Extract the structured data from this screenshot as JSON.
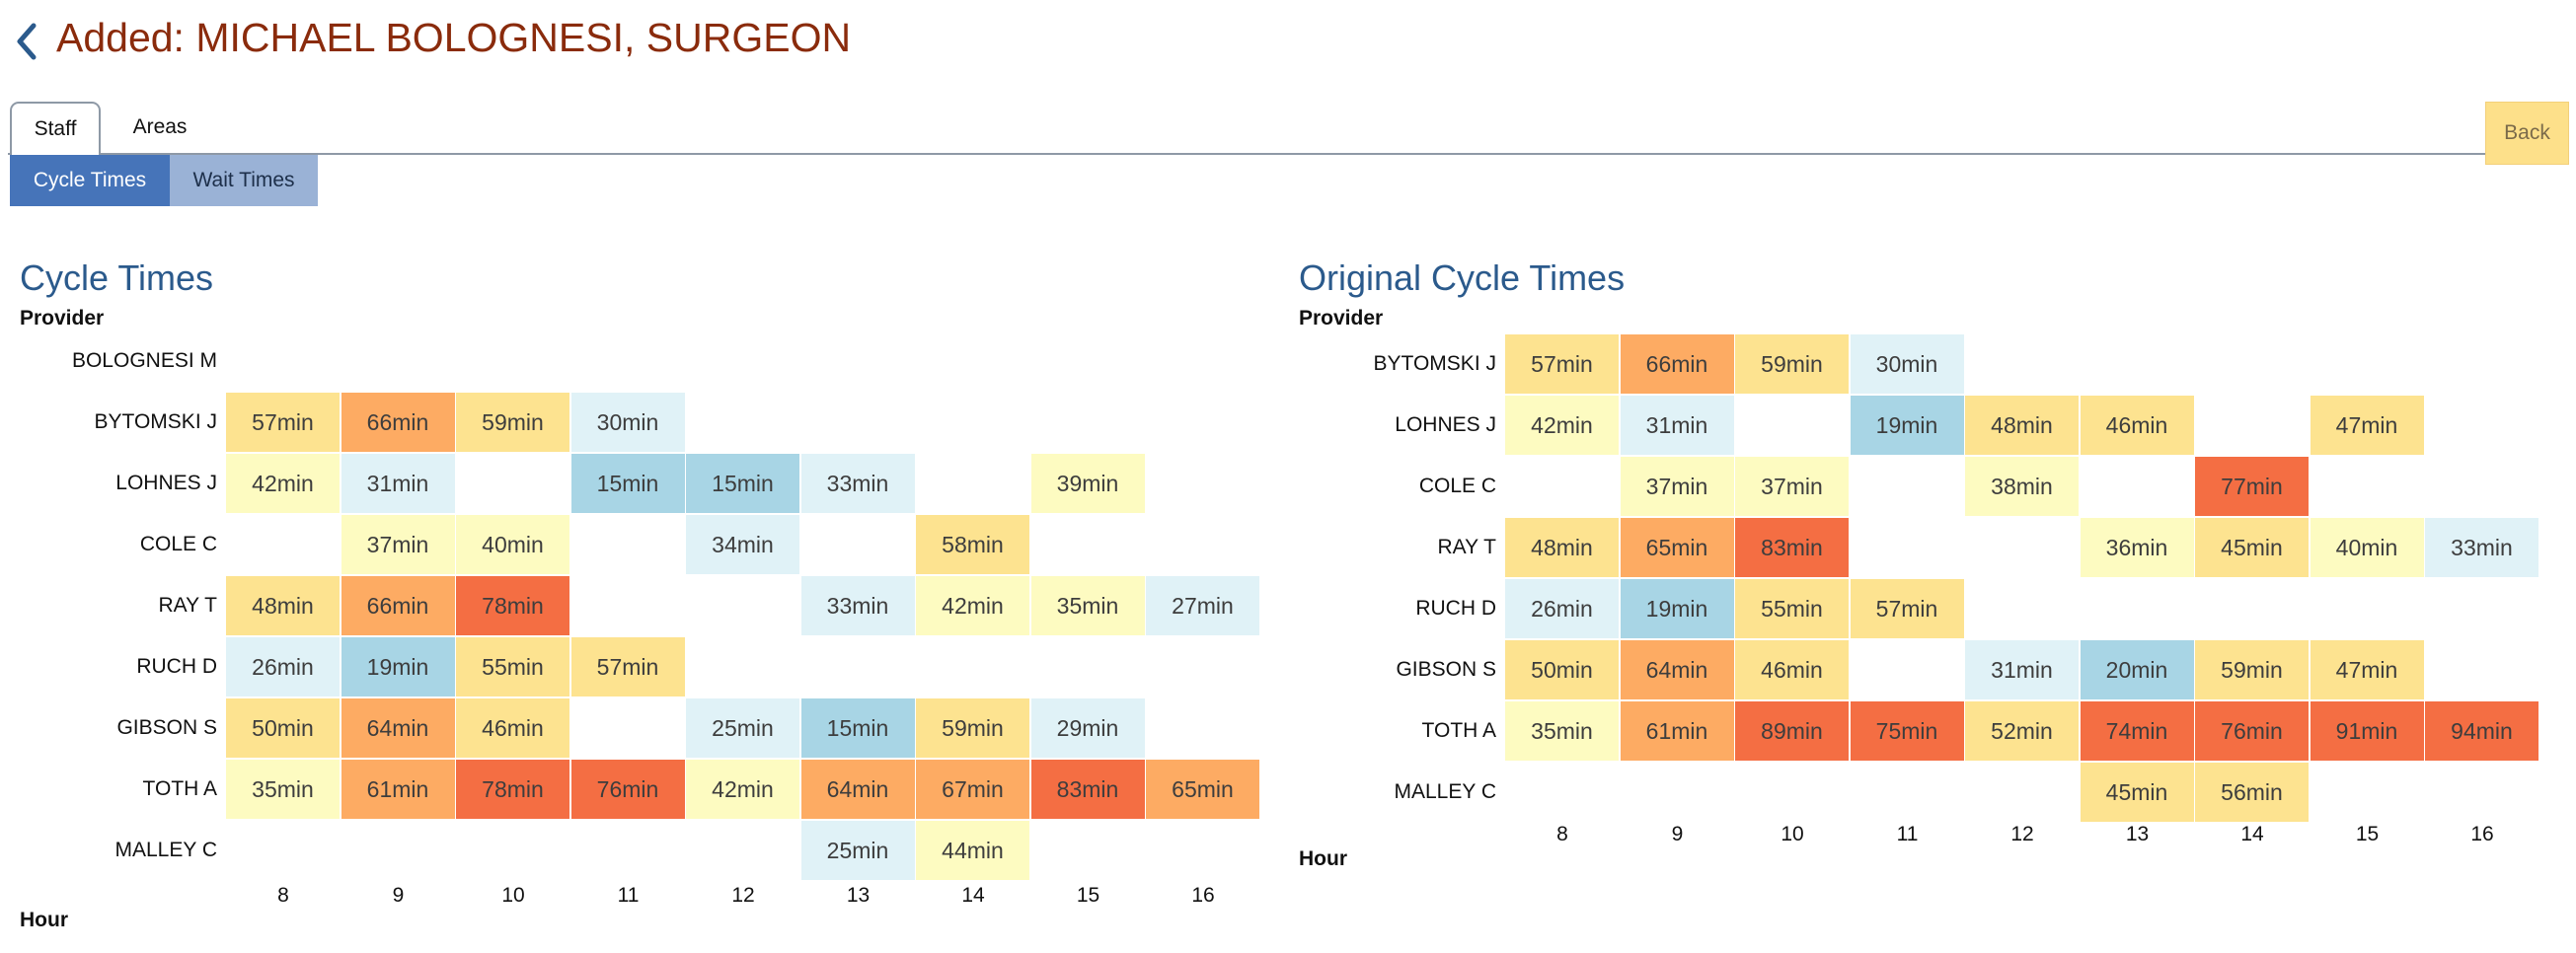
{
  "header": {
    "title": "Added: MICHAEL BOLOGNESI, SURGEON",
    "back_icon": "chevron-left-icon"
  },
  "tabs": [
    {
      "label": "Staff",
      "active": true
    },
    {
      "label": "Areas",
      "active": false
    }
  ],
  "back_button": {
    "label": "Back"
  },
  "subtabs": [
    {
      "label": "Cycle Times",
      "active": true
    },
    {
      "label": "Wait Times",
      "active": false
    }
  ],
  "colors": {
    "title": "#8a2b0c",
    "panel_title": "#2b5a8c",
    "subtab_active": "#4674b9",
    "subtab_inactive": "#9ab2d6",
    "back_button": "#fde08a"
  },
  "chart_data": [
    {
      "type": "heatmap",
      "title": "Cycle Times",
      "ylabel": "Provider",
      "xlabel": "Hour",
      "x": [
        "8",
        "9",
        "10",
        "11",
        "12",
        "13",
        "14",
        "15",
        "16"
      ],
      "y": [
        "BOLOGNESI M",
        "BYTOMSKI J",
        "LOHNES J",
        "COLE C",
        "RAY T",
        "RUCH D",
        "GIBSON S",
        "TOTH A",
        "MALLEY C"
      ],
      "values": [
        [
          null,
          null,
          null,
          null,
          null,
          null,
          null,
          null,
          null
        ],
        [
          57,
          66,
          59,
          30,
          null,
          null,
          null,
          null,
          null
        ],
        [
          42,
          31,
          null,
          15,
          15,
          33,
          null,
          39,
          null
        ],
        [
          null,
          37,
          40,
          null,
          34,
          null,
          58,
          null,
          null
        ],
        [
          48,
          66,
          78,
          null,
          null,
          33,
          42,
          35,
          27
        ],
        [
          26,
          19,
          55,
          57,
          null,
          null,
          null,
          null,
          null
        ],
        [
          50,
          64,
          46,
          null,
          25,
          15,
          59,
          29,
          null
        ],
        [
          35,
          61,
          78,
          76,
          42,
          64,
          67,
          83,
          65
        ],
        [
          null,
          null,
          null,
          null,
          null,
          25,
          44,
          null,
          null
        ]
      ],
      "unit": "min"
    },
    {
      "type": "heatmap",
      "title": "Original Cycle Times",
      "ylabel": "Provider",
      "xlabel": "Hour",
      "x": [
        "8",
        "9",
        "10",
        "11",
        "12",
        "13",
        "14",
        "15",
        "16"
      ],
      "y": [
        "BYTOMSKI J",
        "LOHNES J",
        "COLE C",
        "RAY T",
        "RUCH D",
        "GIBSON S",
        "TOTH A",
        "MALLEY C"
      ],
      "values": [
        [
          57,
          66,
          59,
          30,
          null,
          null,
          null,
          null,
          null
        ],
        [
          42,
          31,
          null,
          19,
          48,
          46,
          null,
          47,
          null
        ],
        [
          null,
          37,
          37,
          null,
          38,
          null,
          77,
          null,
          null
        ],
        [
          48,
          65,
          83,
          null,
          null,
          36,
          45,
          40,
          33
        ],
        [
          26,
          19,
          55,
          57,
          null,
          null,
          null,
          null,
          null
        ],
        [
          50,
          64,
          46,
          null,
          31,
          20,
          59,
          47,
          null
        ],
        [
          35,
          61,
          89,
          75,
          52,
          74,
          76,
          91,
          94
        ],
        [
          null,
          null,
          null,
          null,
          null,
          45,
          56,
          null,
          null
        ]
      ],
      "unit": "min"
    }
  ]
}
